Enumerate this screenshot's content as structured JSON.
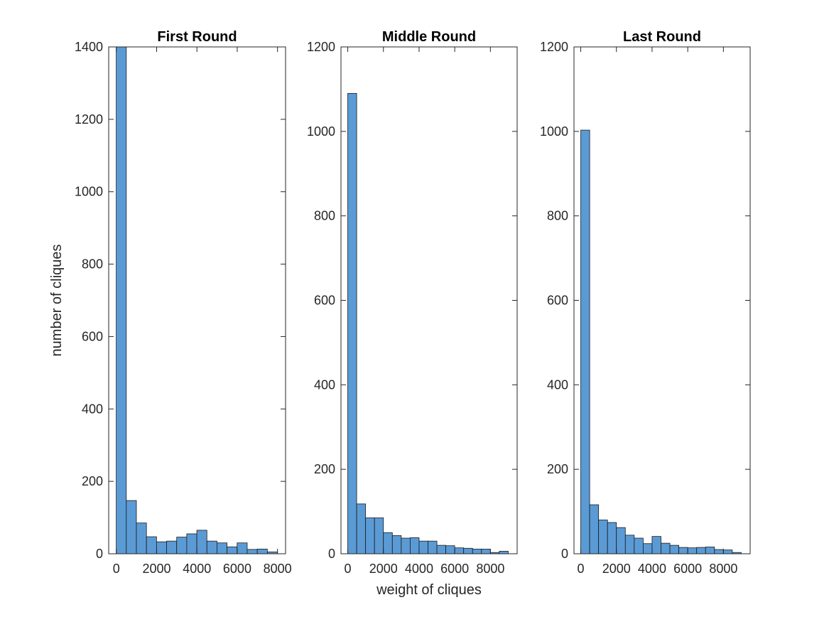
{
  "figure": {
    "xlabel": "weight of cliques",
    "ylabel": "number of cliques",
    "bar_color": "#5b9bd5",
    "edge_color": "#1a1a1a"
  },
  "chart_data": [
    {
      "type": "bar",
      "title": "First Round",
      "bin_width": 500,
      "bin_edges": [
        -5,
        495,
        995,
        1495,
        1995,
        2495,
        2995,
        3495,
        3995,
        4495,
        4995,
        5495,
        5995,
        6495,
        6995,
        7495,
        7995
      ],
      "values": [
        1400,
        147,
        85,
        47,
        33,
        35,
        46,
        55,
        65,
        35,
        30,
        19,
        30,
        12,
        13,
        5
      ],
      "xlim": [
        -380,
        8400
      ],
      "ylim": [
        0,
        1400
      ],
      "xticks": [
        0,
        2000,
        4000,
        6000,
        8000
      ],
      "yticks": [
        0,
        200,
        400,
        600,
        800,
        1000,
        1200,
        1400
      ],
      "xlabel": "",
      "ylabel": "number of cliques"
    },
    {
      "type": "bar",
      "title": "Middle Round",
      "bin_width": 500,
      "bin_edges": [
        0,
        500,
        1000,
        1500,
        2000,
        2500,
        3000,
        3500,
        4000,
        4500,
        5000,
        5500,
        6000,
        6500,
        7000,
        7500,
        8000,
        8500,
        9000
      ],
      "values": [
        1090,
        118,
        85,
        85,
        50,
        43,
        37,
        38,
        30,
        30,
        20,
        19,
        14,
        13,
        11,
        11,
        3,
        6
      ],
      "xlim": [
        -380,
        9500
      ],
      "ylim": [
        0,
        1200
      ],
      "xticks": [
        0,
        2000,
        4000,
        6000,
        8000
      ],
      "yticks": [
        0,
        200,
        400,
        600,
        800,
        1000,
        1200
      ],
      "xlabel": "weight of cliques",
      "ylabel": ""
    },
    {
      "type": "bar",
      "title": "Last Round",
      "bin_width": 500,
      "bin_edges": [
        0,
        500,
        1000,
        1500,
        2000,
        2500,
        3000,
        3500,
        4000,
        4500,
        5000,
        5500,
        6000,
        6500,
        7000,
        7500,
        8000,
        8500,
        9000
      ],
      "values": [
        1003,
        116,
        80,
        74,
        62,
        44,
        37,
        24,
        41,
        25,
        20,
        15,
        14,
        15,
        16,
        10,
        9,
        3
      ],
      "xlim": [
        -380,
        9500
      ],
      "ylim": [
        0,
        1200
      ],
      "xticks": [
        0,
        2000,
        4000,
        6000,
        8000
      ],
      "yticks": [
        0,
        200,
        400,
        600,
        800,
        1000,
        1200
      ],
      "xlabel": "",
      "ylabel": ""
    }
  ]
}
